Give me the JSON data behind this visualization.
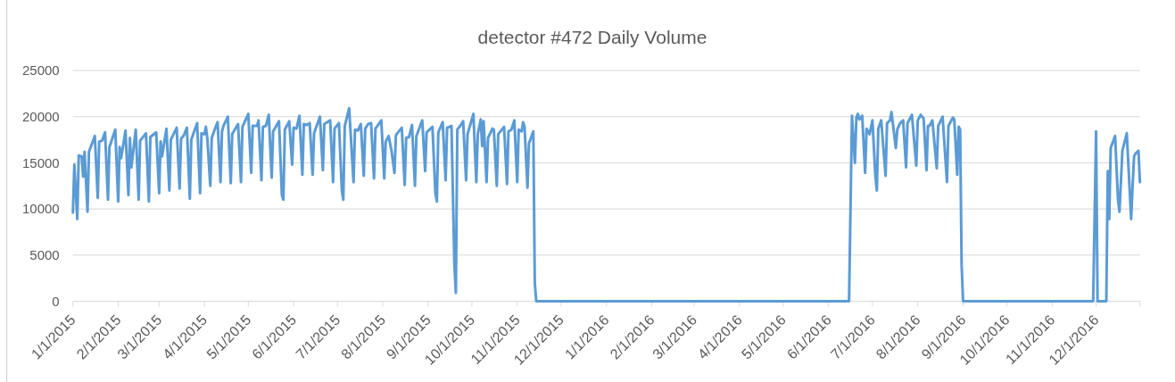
{
  "chart_data": {
    "type": "line",
    "title": "detector #472 Daily Volume",
    "color": "#5b9bd5",
    "grid": "y",
    "ylim": [
      0,
      25000
    ],
    "yticks": [
      0,
      5000,
      10000,
      15000,
      20000,
      25000
    ],
    "xlim": [
      "2015-01-01",
      "2016-12-31"
    ],
    "xticks": [
      {
        "value": "2015-01-01",
        "label": "1/1/2015"
      },
      {
        "value": "2015-02-01",
        "label": "2/1/2015"
      },
      {
        "value": "2015-03-01",
        "label": "3/1/2015"
      },
      {
        "value": "2015-04-01",
        "label": "4/1/2015"
      },
      {
        "value": "2015-05-01",
        "label": "5/1/2015"
      },
      {
        "value": "2015-06-01",
        "label": "6/1/2015"
      },
      {
        "value": "2015-07-01",
        "label": "7/1/2015"
      },
      {
        "value": "2015-08-01",
        "label": "8/1/2015"
      },
      {
        "value": "2015-09-01",
        "label": "9/1/2015"
      },
      {
        "value": "2015-10-01",
        "label": "10/1/2015"
      },
      {
        "value": "2015-11-01",
        "label": "11/1/2015"
      },
      {
        "value": "2015-12-01",
        "label": "12/1/2015"
      },
      {
        "value": "2016-01-01",
        "label": "1/1/2016"
      },
      {
        "value": "2016-02-01",
        "label": "2/1/2016"
      },
      {
        "value": "2016-03-01",
        "label": "3/1/2016"
      },
      {
        "value": "2016-04-01",
        "label": "4/1/2016"
      },
      {
        "value": "2016-05-01",
        "label": "5/1/2016"
      },
      {
        "value": "2016-06-01",
        "label": "6/1/2016"
      },
      {
        "value": "2016-07-01",
        "label": "7/1/2016"
      },
      {
        "value": "2016-08-01",
        "label": "8/1/2016"
      },
      {
        "value": "2016-09-01",
        "label": "9/1/2016"
      },
      {
        "value": "2016-10-01",
        "label": "10/1/2016"
      },
      {
        "value": "2016-11-01",
        "label": "11/1/2016"
      },
      {
        "value": "2016-12-01",
        "label": "12/1/2016"
      },
      {
        "value": "2016-12-31",
        "label": null
      }
    ],
    "x": [
      "2015-01-01",
      "2015-01-02",
      "2015-01-04",
      "2015-01-05",
      "2015-01-07",
      "2015-01-08",
      "2015-01-09",
      "2015-01-11",
      "2015-01-12",
      "2015-01-16",
      "2015-01-18",
      "2015-01-19",
      "2015-01-21",
      "2015-01-23",
      "2015-01-25",
      "2015-01-26",
      "2015-01-30",
      "2015-02-01",
      "2015-02-02",
      "2015-02-03",
      "2015-02-06",
      "2015-02-08",
      "2015-02-09",
      "2015-02-10",
      "2015-02-13",
      "2015-02-15",
      "2015-02-16",
      "2015-02-20",
      "2015-02-22",
      "2015-02-23",
      "2015-02-27",
      "2015-03-01",
      "2015-03-02",
      "2015-03-03",
      "2015-03-06",
      "2015-03-08",
      "2015-03-09",
      "2015-03-13",
      "2015-03-15",
      "2015-03-16",
      "2015-03-18",
      "2015-03-20",
      "2015-03-22",
      "2015-03-23",
      "2015-03-27",
      "2015-03-29",
      "2015-03-30",
      "2015-04-01",
      "2015-04-02",
      "2015-04-03",
      "2015-04-05",
      "2015-04-06",
      "2015-04-08",
      "2015-04-10",
      "2015-04-12",
      "2015-04-13",
      "2015-04-14",
      "2015-04-17",
      "2015-04-19",
      "2015-04-20",
      "2015-04-24",
      "2015-04-26",
      "2015-04-27",
      "2015-05-01",
      "2015-05-03",
      "2015-05-04",
      "2015-05-07",
      "2015-05-08",
      "2015-05-10",
      "2015-05-11",
      "2015-05-13",
      "2015-05-15",
      "2015-05-17",
      "2015-05-18",
      "2015-05-22",
      "2015-05-24",
      "2015-05-25",
      "2015-05-26",
      "2015-05-29",
      "2015-05-31",
      "2015-06-01",
      "2015-06-03",
      "2015-06-05",
      "2015-06-07",
      "2015-06-08",
      "2015-06-10",
      "2015-06-12",
      "2015-06-14",
      "2015-06-15",
      "2015-06-19",
      "2015-06-21",
      "2015-06-22",
      "2015-06-26",
      "2015-06-28",
      "2015-06-29",
      "2015-07-02",
      "2015-07-04",
      "2015-07-05",
      "2015-07-06",
      "2015-07-09",
      "2015-07-12",
      "2015-07-13",
      "2015-07-15",
      "2015-07-17",
      "2015-07-19",
      "2015-07-20",
      "2015-07-22",
      "2015-07-24",
      "2015-07-26",
      "2015-07-27",
      "2015-07-31",
      "2015-08-02",
      "2015-08-03",
      "2015-08-05",
      "2015-08-07",
      "2015-08-09",
      "2015-08-10",
      "2015-08-14",
      "2015-08-16",
      "2015-08-17",
      "2015-08-19",
      "2015-08-21",
      "2015-08-23",
      "2015-08-24",
      "2015-08-28",
      "2015-08-30",
      "2015-08-31",
      "2015-09-02",
      "2015-09-04",
      "2015-09-06",
      "2015-09-07",
      "2015-09-08",
      "2015-09-11",
      "2015-09-13",
      "2015-09-14",
      "2015-09-17",
      "2015-09-19",
      "2015-09-20",
      "2015-09-21",
      "2015-09-23",
      "2015-09-25",
      "2015-09-27",
      "2015-09-28",
      "2015-09-30",
      "2015-10-02",
      "2015-10-04",
      "2015-10-05",
      "2015-10-07",
      "2015-10-08",
      "2015-10-09",
      "2015-10-11",
      "2015-10-12",
      "2015-10-15",
      "2015-10-16",
      "2015-10-18",
      "2015-10-19",
      "2015-10-23",
      "2015-10-25",
      "2015-10-26",
      "2015-10-28",
      "2015-10-30",
      "2015-11-01",
      "2015-11-02",
      "2015-11-04",
      "2015-11-05",
      "2015-11-06",
      "2015-11-08",
      "2015-11-09",
      "2015-11-12",
      "2015-11-13",
      "2015-11-14",
      "2016-06-15",
      "2016-06-17",
      "2016-06-19",
      "2016-06-20",
      "2016-06-21",
      "2016-06-22",
      "2016-06-24",
      "2016-06-26",
      "2016-06-27",
      "2016-06-29",
      "2016-07-01",
      "2016-07-03",
      "2016-07-04",
      "2016-07-05",
      "2016-07-07",
      "2016-07-10",
      "2016-07-11",
      "2016-07-13",
      "2016-07-14",
      "2016-07-17",
      "2016-07-18",
      "2016-07-20",
      "2016-07-22",
      "2016-07-24",
      "2016-07-25",
      "2016-07-28",
      "2016-07-31",
      "2016-08-01",
      "2016-08-03",
      "2016-08-05",
      "2016-08-07",
      "2016-08-08",
      "2016-08-09",
      "2016-08-11",
      "2016-08-14",
      "2016-08-15",
      "2016-08-18",
      "2016-08-21",
      "2016-08-22",
      "2016-08-25",
      "2016-08-26",
      "2016-08-28",
      "2016-08-29",
      "2016-08-30",
      "2016-08-31",
      "2016-09-01",
      "2016-11-29",
      "2016-12-01",
      "2016-12-02",
      "2016-12-08",
      "2016-12-09",
      "2016-12-10",
      "2016-12-11",
      "2016-12-14",
      "2016-12-16",
      "2016-12-17",
      "2016-12-19",
      "2016-12-22",
      "2016-12-25",
      "2016-12-26",
      "2016-12-27",
      "2016-12-28",
      "2016-12-30",
      "2016-12-31"
    ],
    "values": [
      9600,
      14800,
      8900,
      15800,
      15700,
      13500,
      16200,
      9700,
      16200,
      17900,
      11200,
      17300,
      17400,
      18300,
      11000,
      16700,
      18600,
      10800,
      16700,
      15500,
      18500,
      11500,
      17700,
      14500,
      18600,
      11000,
      17400,
      18200,
      10800,
      17800,
      18300,
      11700,
      17300,
      15700,
      18700,
      12000,
      17500,
      18800,
      12200,
      17600,
      18000,
      18800,
      11100,
      17500,
      19300,
      11700,
      18200,
      18100,
      18900,
      17600,
      12500,
      17700,
      18600,
      19400,
      12900,
      18400,
      19000,
      20000,
      12800,
      18100,
      19200,
      12900,
      18900,
      20300,
      13900,
      19000,
      19000,
      19600,
      13100,
      18900,
      19000,
      20200,
      13400,
      18400,
      19500,
      11500,
      11000,
      18600,
      19500,
      14800,
      18800,
      18700,
      20100,
      13700,
      19200,
      19100,
      19300,
      13700,
      18200,
      20000,
      14200,
      19200,
      19600,
      12900,
      18700,
      19300,
      12000,
      11000,
      19000,
      20900,
      12900,
      18600,
      18500,
      19200,
      13600,
      18700,
      19200,
      19300,
      13300,
      18700,
      19600,
      13300,
      17300,
      17900,
      16300,
      13900,
      18000,
      18800,
      12600,
      17700,
      17800,
      19100,
      12500,
      17900,
      19600,
      14100,
      18300,
      18600,
      18900,
      11700,
      10800,
      18300,
      19400,
      13100,
      18800,
      19000,
      4000,
      900,
      18600,
      19000,
      19500,
      13100,
      18100,
      19200,
      20300,
      12900,
      18100,
      19700,
      16800,
      19500,
      12900,
      17700,
      18700,
      18600,
      12500,
      18100,
      18900,
      12700,
      18400,
      18600,
      19600,
      12900,
      18600,
      18400,
      19400,
      18900,
      12300,
      17100,
      18400,
      2000,
      0,
      0,
      20100,
      15000,
      19900,
      20300,
      19700,
      20100,
      13900,
      18700,
      18100,
      19600,
      13600,
      12000,
      18700,
      19600,
      13600,
      19300,
      19600,
      20500,
      16600,
      18600,
      19300,
      19600,
      14500,
      19300,
      20200,
      14700,
      19600,
      20200,
      19800,
      14200,
      19000,
      19000,
      19600,
      14400,
      19000,
      20000,
      12900,
      19000,
      19900,
      19700,
      13700,
      18900,
      18600,
      4000,
      0,
      0,
      18400,
      0,
      0,
      14100,
      8900,
      16600,
      17900,
      11000,
      9700,
      16300,
      18200,
      8900,
      12600,
      15700,
      16000,
      16300,
      12900
    ]
  }
}
